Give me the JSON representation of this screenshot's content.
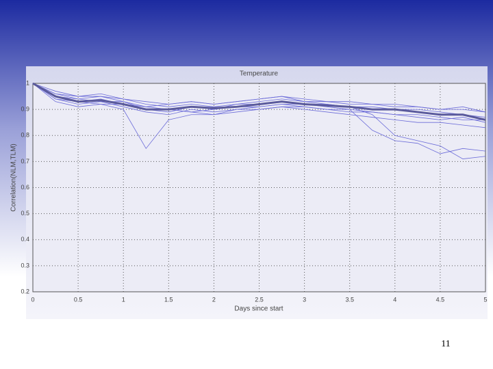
{
  "chart_data": {
    "type": "line",
    "title": "Temperature",
    "x_label": "Days since start",
    "y_label": "Correlation(NLM,TLM)",
    "x": [
      0,
      0.25,
      0.5,
      0.75,
      1,
      1.25,
      1.5,
      1.75,
      2,
      2.25,
      2.5,
      2.75,
      3,
      3.25,
      3.5,
      3.75,
      4,
      4.25,
      4.5,
      4.75,
      5
    ],
    "series": [
      {
        "color": "#6a6ad8",
        "values": [
          1,
          0.96,
          0.94,
          0.95,
          0.93,
          0.91,
          0.92,
          0.93,
          0.92,
          0.93,
          0.94,
          0.95,
          0.93,
          0.93,
          0.92,
          0.92,
          0.91,
          0.91,
          0.9,
          0.9,
          0.89
        ]
      },
      {
        "color": "#6a6ad8",
        "values": [
          1,
          0.94,
          0.92,
          0.93,
          0.91,
          0.89,
          0.88,
          0.9,
          0.89,
          0.9,
          0.91,
          0.92,
          0.91,
          0.9,
          0.9,
          0.89,
          0.88,
          0.87,
          0.86,
          0.87,
          0.85
        ]
      },
      {
        "color": "#6a6ad8",
        "values": [
          1,
          0.95,
          0.93,
          0.94,
          0.92,
          0.9,
          0.89,
          0.91,
          0.9,
          0.92,
          0.92,
          0.93,
          0.92,
          0.92,
          0.91,
          0.91,
          0.9,
          0.9,
          0.89,
          0.88,
          0.87
        ]
      },
      {
        "color": "#6a6ad8",
        "values": [
          1,
          0.93,
          0.91,
          0.92,
          0.9,
          0.75,
          0.86,
          0.88,
          0.88,
          0.89,
          0.9,
          0.91,
          0.9,
          0.89,
          0.88,
          0.87,
          0.86,
          0.85,
          0.85,
          0.84,
          0.83
        ]
      },
      {
        "color": "#6a6ad8",
        "values": [
          1,
          0.96,
          0.95,
          0.95,
          0.94,
          0.92,
          0.91,
          0.92,
          0.91,
          0.92,
          0.93,
          0.94,
          0.93,
          0.92,
          0.91,
          0.88,
          0.8,
          0.78,
          0.76,
          0.71,
          0.72
        ]
      },
      {
        "color": "#6a6ad8",
        "values": [
          1,
          0.95,
          0.94,
          0.93,
          0.93,
          0.9,
          0.9,
          0.89,
          0.9,
          0.91,
          0.91,
          0.92,
          0.92,
          0.91,
          0.9,
          0.82,
          0.78,
          0.77,
          0.73,
          0.75,
          0.74
        ]
      },
      {
        "color": "#6a6ad8",
        "values": [
          1,
          0.94,
          0.93,
          0.92,
          0.92,
          0.91,
          0.9,
          0.89,
          0.88,
          0.9,
          0.9,
          0.91,
          0.91,
          0.9,
          0.89,
          0.89,
          0.88,
          0.88,
          0.87,
          0.86,
          0.86
        ]
      },
      {
        "color": "#6a6ad8",
        "values": [
          1,
          0.97,
          0.95,
          0.96,
          0.94,
          0.93,
          0.92,
          0.93,
          0.92,
          0.93,
          0.94,
          0.95,
          0.94,
          0.93,
          0.93,
          0.92,
          0.92,
          0.91,
          0.9,
          0.91,
          0.89
        ]
      },
      {
        "color": "#5a5a9c",
        "width": 3,
        "values": [
          1,
          0.95,
          0.93,
          0.935,
          0.92,
          0.9,
          0.9,
          0.91,
          0.905,
          0.91,
          0.92,
          0.93,
          0.92,
          0.915,
          0.91,
          0.9,
          0.9,
          0.89,
          0.88,
          0.88,
          0.86
        ]
      }
    ],
    "xlim": [
      0,
      5
    ],
    "xticks": [
      0,
      0.5,
      1,
      1.5,
      2,
      2.5,
      3,
      3.5,
      4,
      4.5,
      5
    ],
    "ylim": [
      0.2,
      1
    ],
    "yticks": [
      0.2,
      0.3,
      0.4,
      0.5,
      0.6,
      0.7,
      0.8,
      0.9,
      1
    ],
    "grid": true
  },
  "page_number": "11"
}
